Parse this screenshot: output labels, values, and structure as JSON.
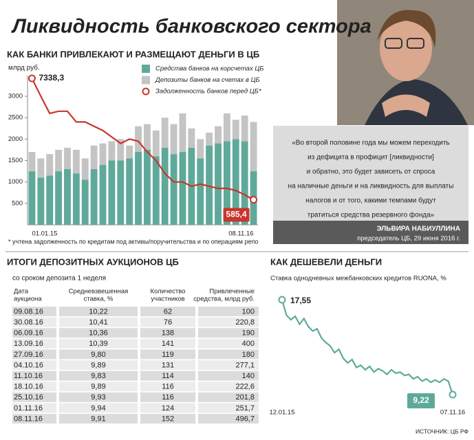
{
  "title": "Ликвидность банковского сектора",
  "chart_data": [
    {
      "type": "bar-line",
      "title": "КАК БАНКИ ПРИВЛЕКАЮТ И РАЗМЕЩАЮТ ДЕНЬГИ В ЦБ",
      "y_label": "млрд руб.",
      "footnote": "* учтена задолженность по кредитам под активы/поручительства и по операциям репо",
      "categories": [
        "01.01.15",
        null,
        null,
        null,
        null,
        null,
        null,
        null,
        null,
        null,
        null,
        null,
        null,
        null,
        null,
        null,
        null,
        null,
        null,
        null,
        null,
        null,
        null,
        null,
        null,
        "08.11.16"
      ],
      "ylim": [
        0,
        3000
      ],
      "yticks": [
        500,
        1000,
        1500,
        2000,
        2500,
        3000
      ],
      "series": [
        {
          "name": "Средства банков на корсчетах ЦБ",
          "kind": "bar",
          "color": "#5fa99a",
          "values": [
            1250,
            1100,
            1150,
            1250,
            1300,
            1200,
            1050,
            1300,
            1400,
            1500,
            1500,
            1550,
            1700,
            1750,
            1600,
            1800,
            1650,
            1700,
            1800,
            1550,
            1850,
            1900,
            1950,
            2000,
            1950,
            1250
          ]
        },
        {
          "name": "Депозиты банков на счетах в ЦБ",
          "kind": "bar",
          "color": "#c4c4c4",
          "values": [
            450,
            450,
            500,
            500,
            500,
            550,
            500,
            550,
            500,
            450,
            500,
            300,
            600,
            600,
            600,
            700,
            700,
            900,
            450,
            450,
            300,
            400,
            650,
            450,
            600,
            1150
          ]
        },
        {
          "name": "Задолженность банков перед ЦБ*",
          "kind": "line",
          "color": "#c8352b",
          "values": [
            7338.3,
            3000,
            2600,
            2650,
            2650,
            2400,
            2400,
            2300,
            2200,
            2050,
            1900,
            2000,
            1950,
            1700,
            1500,
            1200,
            1000,
            1000,
            900,
            950,
            900,
            850,
            850,
            800,
            700,
            585.4
          ],
          "value_labels": [
            "7338,3",
            null,
            null,
            null,
            null,
            null,
            null,
            null,
            null,
            null,
            null,
            null,
            null,
            null,
            null,
            null,
            null,
            null,
            null,
            null,
            null,
            null,
            null,
            null,
            null,
            "585,4"
          ]
        }
      ]
    },
    {
      "type": "line",
      "title": "КАК ДЕШЕВЕЛИ ДЕНЬГИ",
      "subtitle": "Ставка однодневных межбанковских кредитов RUONA, %",
      "x": [
        "12.01.15",
        null,
        null,
        null,
        null,
        null,
        null,
        null,
        null,
        null,
        null,
        null,
        null,
        null,
        null,
        null,
        null,
        null,
        null,
        null,
        null,
        null,
        null,
        null,
        null,
        null,
        null,
        null,
        null,
        null,
        null,
        null,
        null,
        null,
        null,
        null,
        null,
        null,
        null,
        "07.11.16"
      ],
      "color": "#5fa99a",
      "values": [
        17.55,
        16.2,
        15.8,
        16.1,
        15.4,
        15.9,
        15.2,
        14.8,
        15.0,
        14.2,
        13.8,
        13.5,
        12.9,
        13.2,
        12.4,
        12.0,
        12.3,
        11.6,
        11.8,
        11.4,
        11.7,
        11.2,
        11.5,
        11.3,
        11.0,
        11.4,
        11.1,
        11.2,
        10.9,
        11.0,
        10.6,
        10.8,
        10.4,
        10.6,
        10.3,
        10.5,
        10.3,
        10.6,
        10.4,
        9.22
      ],
      "value_labels": [
        "17,55",
        null,
        null,
        null,
        null,
        null,
        null,
        null,
        null,
        null,
        null,
        null,
        null,
        null,
        null,
        null,
        null,
        null,
        null,
        null,
        null,
        null,
        null,
        null,
        null,
        null,
        null,
        null,
        null,
        null,
        null,
        null,
        null,
        null,
        null,
        null,
        null,
        null,
        null,
        "9,22"
      ]
    }
  ],
  "table": {
    "title": "ИТОГИ ДЕПОЗИТНЫХ АУКЦИОНОВ ЦБ",
    "subtitle": "со сроком депозита 1 неделя",
    "header": [
      [
        "Дата",
        "аукциона"
      ],
      [
        "Средневзвешенная",
        "ставка, %"
      ],
      [
        "Количество",
        "участников"
      ],
      [
        "Привлеченные",
        "средства, млрд руб."
      ]
    ],
    "rows": [
      [
        "09.08.16",
        "10,22",
        "62",
        "100"
      ],
      [
        "30.08.16",
        "10,41",
        "76",
        "220,8"
      ],
      [
        "06.09.16",
        "10,36",
        "138",
        "190"
      ],
      [
        "13.09.16",
        "10,39",
        "141",
        "400"
      ],
      [
        "27.09.16",
        "9,80",
        "119",
        "180"
      ],
      [
        "04.10.16",
        "9,89",
        "131",
        "277,1"
      ],
      [
        "11.10.16",
        "9,83",
        "114",
        "140"
      ],
      [
        "18.10.16",
        "9,89",
        "116",
        "222,6"
      ],
      [
        "25.10.16",
        "9,93",
        "116",
        "201,8"
      ],
      [
        "01.11.16",
        "9,94",
        "124",
        "251,7"
      ],
      [
        "08.11.16",
        "9,91",
        "152",
        "496,7"
      ]
    ]
  },
  "quote": {
    "lines": [
      "«Во второй половине года мы можем переходить",
      "из дефицита в профицит [ликвидности]",
      "и обратно, это будет зависеть от спроса",
      "на наличные деньги и на ликвидность для выплаты",
      "налогов и от того, какими темпами будут",
      "тратиться средства резервного фонда»"
    ],
    "author": "ЭЛЬВИРА НАБИУЛЛИНА",
    "position": "председатель ЦБ, 29 июня 2016 г."
  },
  "source": "ИСТОЧНИК: ЦБ РФ"
}
